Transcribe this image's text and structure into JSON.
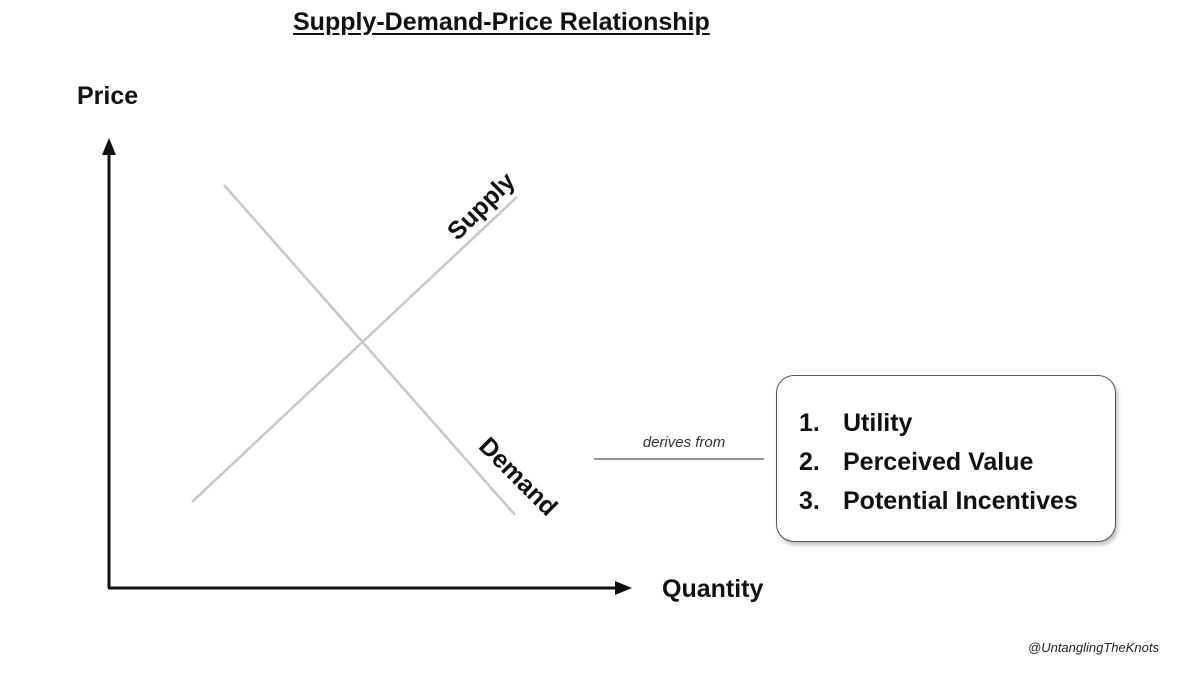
{
  "title": "Supply-Demand-Price Relationship",
  "axes": {
    "y_label": "Price",
    "x_label": "Quantity"
  },
  "curves": {
    "supply_label": "Supply",
    "demand_label": "Demand"
  },
  "connector": {
    "label": "derives from"
  },
  "factors": [
    {
      "number": "1.",
      "label": "Utility"
    },
    {
      "number": "2.",
      "label": "Perceived Value"
    },
    {
      "number": "3.",
      "label": "Potential Incentives"
    }
  ],
  "watermark": "@UntanglingTheKnots",
  "colors": {
    "axis": "#111111",
    "curve": "#c8c8c8",
    "connector_line": "#555555",
    "box_border": "#555555"
  }
}
